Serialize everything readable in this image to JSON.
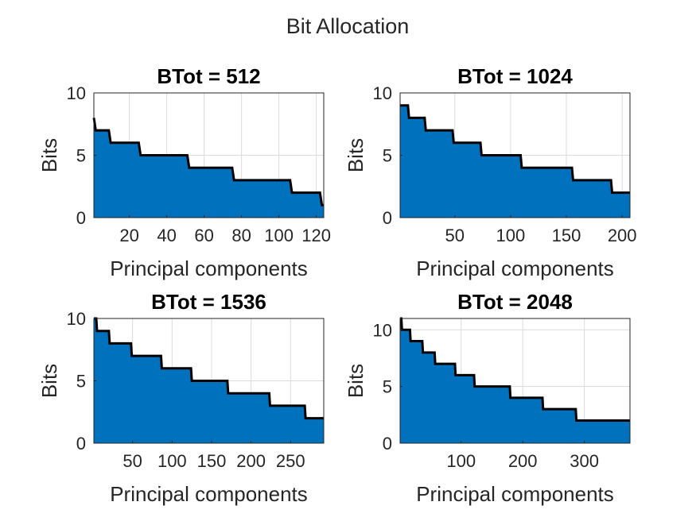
{
  "figure": {
    "title": "Bit Allocation"
  },
  "colors": {
    "fill": "#0072BD",
    "line": "#000000",
    "grid": "#dcdcdc",
    "axis": "#262626"
  },
  "chart_data": [
    {
      "type": "area",
      "title": "BTot = 512",
      "xlabel": "Principal components",
      "ylabel": "Bits",
      "xlim": [
        1,
        124
      ],
      "ylim": [
        0,
        10
      ],
      "xticks": [
        20,
        40,
        60,
        80,
        100,
        120
      ],
      "xtick_labels": [
        "20",
        "40",
        "60",
        "80",
        "100",
        "120"
      ],
      "yticks": [
        0,
        5,
        10
      ],
      "ytick_labels": [
        "0",
        "5",
        "10"
      ],
      "grid": true,
      "x": [
        1,
        2,
        9,
        10,
        25,
        26,
        51,
        52,
        75,
        76,
        106,
        107,
        122,
        123,
        124
      ],
      "y": [
        8,
        7,
        7,
        6,
        6,
        5,
        5,
        4,
        4,
        3,
        3,
        2,
        2,
        1,
        1
      ]
    },
    {
      "type": "area",
      "title": "BTot = 1024",
      "xlabel": "Principal components",
      "ylabel": "Bits",
      "xlim": [
        1,
        207
      ],
      "ylim": [
        0,
        10
      ],
      "xticks": [
        50,
        100,
        150,
        200
      ],
      "xtick_labels": [
        "50",
        "100",
        "150",
        "200"
      ],
      "yticks": [
        0,
        5,
        10
      ],
      "ytick_labels": [
        "0",
        "5",
        "10"
      ],
      "grid": true,
      "x": [
        1,
        8,
        9,
        23,
        24,
        48,
        49,
        73,
        74,
        109,
        110,
        155,
        156,
        190,
        191,
        207
      ],
      "y": [
        9,
        9,
        8,
        8,
        7,
        7,
        6,
        6,
        5,
        5,
        4,
        4,
        3,
        3,
        2,
        2
      ]
    },
    {
      "type": "area",
      "title": "BTot = 1536",
      "xlabel": "Principal components",
      "ylabel": "Bits",
      "xlim": [
        1,
        292
      ],
      "ylim": [
        0,
        10
      ],
      "xticks": [
        50,
        100,
        150,
        200,
        250
      ],
      "xtick_labels": [
        "50",
        "100",
        "150",
        "200",
        "250"
      ],
      "yticks": [
        0,
        5,
        10
      ],
      "ytick_labels": [
        "0",
        "5",
        "10"
      ],
      "grid": true,
      "x": [
        1,
        4,
        5,
        20,
        21,
        48,
        49,
        86,
        87,
        124,
        125,
        170,
        171,
        223,
        224,
        268,
        269,
        292
      ],
      "y": [
        10,
        10,
        9,
        9,
        8,
        8,
        7,
        7,
        6,
        6,
        5,
        5,
        4,
        4,
        3,
        3,
        2,
        2
      ]
    },
    {
      "type": "area",
      "title": "BTot = 2048",
      "xlabel": "Principal components",
      "ylabel": "Bits",
      "xlim": [
        1,
        374
      ],
      "ylim": [
        0,
        11
      ],
      "xticks": [
        100,
        200,
        300
      ],
      "xtick_labels": [
        "100",
        "200",
        "300"
      ],
      "yticks": [
        0,
        5,
        10
      ],
      "ytick_labels": [
        "0",
        "5",
        "10"
      ],
      "grid": true,
      "x": [
        1,
        3,
        4,
        17,
        18,
        37,
        38,
        57,
        58,
        90,
        91,
        121,
        122,
        179,
        180,
        232,
        233,
        286,
        287,
        340,
        341,
        374
      ],
      "y": [
        11,
        11,
        10,
        10,
        9,
        9,
        8,
        8,
        7,
        7,
        6,
        6,
        5,
        5,
        4,
        4,
        3,
        3,
        2,
        2,
        2,
        2
      ]
    }
  ]
}
